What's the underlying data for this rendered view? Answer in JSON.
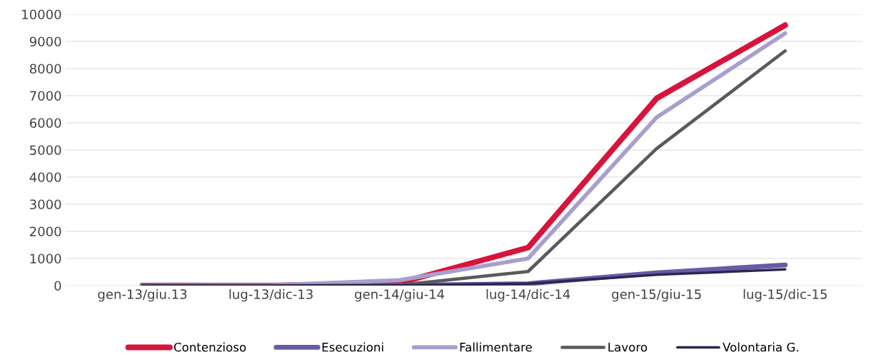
{
  "chart_data": {
    "type": "line",
    "categories": [
      "gen-13/giu.13",
      "lug-13/dic-13",
      "gen-14/giu-14",
      "lug-14/dic-14",
      "gen-15/giu-15",
      "lug-15/dic-15"
    ],
    "ylim": [
      0,
      10000
    ],
    "yticks": [
      0,
      1000,
      2000,
      3000,
      4000,
      5000,
      6000,
      7000,
      8000,
      9000,
      10000
    ],
    "grid": "y",
    "legend": "bottom",
    "marker": "none",
    "line_style": "solid",
    "series": [
      {
        "name": "Contenzioso",
        "color": "#d7143c",
        "values": [
          0,
          0,
          100,
          1400,
          6900,
          9600
        ]
      },
      {
        "name": "Esecuzioni",
        "color": "#6a5aa6",
        "values": [
          0,
          0,
          10,
          70,
          470,
          760
        ]
      },
      {
        "name": "Fallimentare",
        "color": "#a99fcd",
        "values": [
          0,
          20,
          200,
          1000,
          6200,
          9300
        ]
      },
      {
        "name": "Lavoro",
        "color": "#5a5a5a",
        "values": [
          0,
          0,
          20,
          520,
          5050,
          8650
        ]
      },
      {
        "name": "Volontaria G.",
        "color": "#2e2650",
        "values": [
          0,
          0,
          10,
          70,
          400,
          600
        ]
      }
    ]
  }
}
